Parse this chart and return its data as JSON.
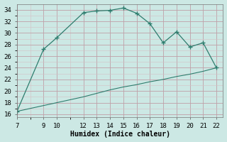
{
  "xlabel": "Humidex (Indice chaleur)",
  "line1_x": [
    7,
    9,
    10,
    12,
    13,
    14,
    15,
    16,
    17,
    18,
    19,
    20,
    21,
    22
  ],
  "line1_y": [
    16.5,
    27.2,
    29.2,
    33.5,
    33.8,
    33.9,
    34.3,
    33.4,
    31.6,
    28.3,
    30.2,
    27.6,
    28.3,
    24.0
  ],
  "line2_x": [
    7,
    9,
    10,
    11,
    12,
    13,
    14,
    15,
    16,
    17,
    18,
    19,
    20,
    21,
    22
  ],
  "line2_y": [
    16.5,
    17.5,
    18.0,
    18.5,
    19.0,
    19.6,
    20.2,
    20.7,
    21.1,
    21.6,
    22.0,
    22.5,
    22.9,
    23.4,
    24.0
  ],
  "color": "#2e7d6e",
  "bg_color": "#cce8e4",
  "grid_major_color": "#c0a0a8",
  "grid_minor_color": "#d4c0c4",
  "xlim": [
    7,
    22.5
  ],
  "ylim": [
    15.5,
    35
  ],
  "xticks": [
    7,
    9,
    10,
    12,
    13,
    14,
    15,
    16,
    17,
    18,
    19,
    20,
    21,
    22
  ],
  "yticks": [
    16,
    18,
    20,
    22,
    24,
    26,
    28,
    30,
    32,
    34
  ],
  "fontsize": 6.5
}
